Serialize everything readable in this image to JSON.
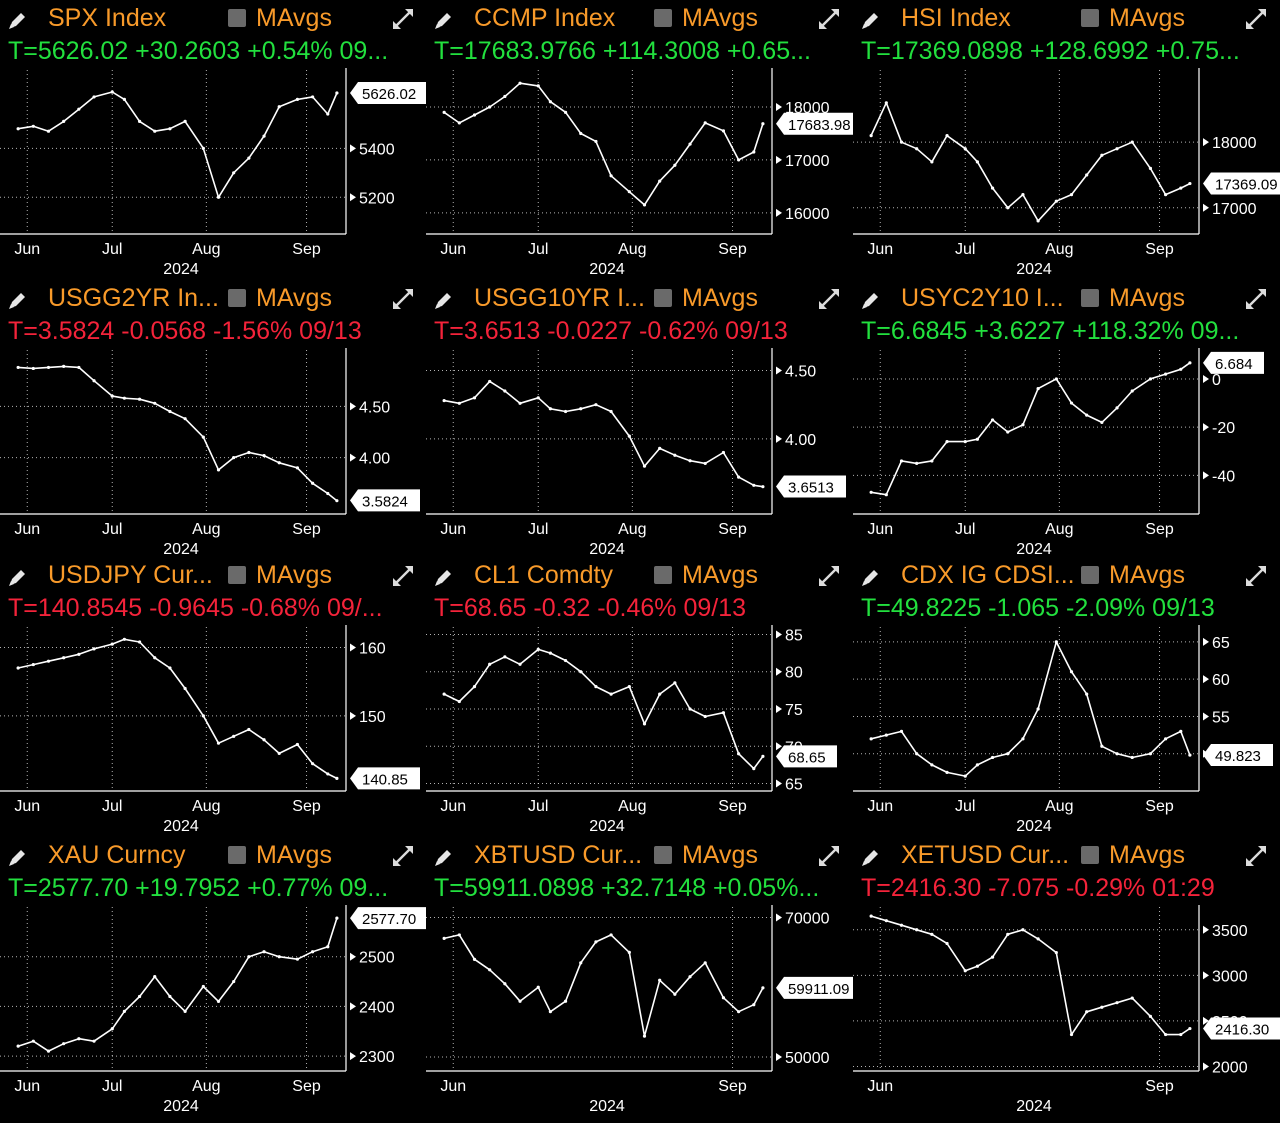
{
  "panels": [
    {
      "title": "SPX Index",
      "ma_label": "MAvgs",
      "status": "T=5626.02 +30.2603 +0.54% 09...",
      "status_color": "#22e03e"
    },
    {
      "title": "CCMP Index",
      "ma_label": "MAvgs",
      "status": "T=17683.9766 +114.3008 +0.65...",
      "status_color": "#22e03e"
    },
    {
      "title": "HSI Index",
      "ma_label": "MAvgs",
      "status": "T=17369.0898 +128.6992 +0.75...",
      "status_color": "#22e03e"
    },
    {
      "title": "USGG2YR In...",
      "ma_label": "MAvgs",
      "status": "T=3.5824 -0.0568 -1.56% 09/13",
      "status_color": "#f4233a"
    },
    {
      "title": "USGG10YR I...",
      "ma_label": "MAvgs",
      "status": "T=3.6513 -0.0227 -0.62% 09/13",
      "status_color": "#f4233a"
    },
    {
      "title": "USYC2Y10 I...",
      "ma_label": "MAvgs",
      "status": "T=6.6845 +3.6227 +118.32% 09...",
      "status_color": "#22e03e"
    },
    {
      "title": "USDJPY Cur...",
      "ma_label": "MAvgs",
      "status": "T=140.8545 -0.9645 -0.68% 09/...",
      "status_color": "#f4233a"
    },
    {
      "title": "CL1 Comdty",
      "ma_label": "MAvgs",
      "status": "T=68.65 -0.32 -0.46% 09/13",
      "status_color": "#f4233a"
    },
    {
      "title": "CDX IG CDSI...",
      "ma_label": "MAvgs",
      "status": "T=49.8225 -1.065 -2.09% 09/13",
      "status_color": "#22e03e"
    },
    {
      "title": "XAU Curncy",
      "ma_label": "MAvgs",
      "status": "T=2577.70 +19.7952 +0.77% 09...",
      "status_color": "#22e03e"
    },
    {
      "title": "XBTUSD Cur...",
      "ma_label": "MAvgs",
      "status": "T=59911.0898 +32.7148 +0.05%...",
      "status_color": "#22e03e"
    },
    {
      "title": "XETUSD Cur...",
      "ma_label": "MAvgs",
      "status": "T=2416.30 -7.075 -0.29% 01:29",
      "status_color": "#f4233a"
    }
  ],
  "chart_data": [
    {
      "type": "line",
      "title": "SPX Index",
      "ylim": [
        5050,
        5720
      ],
      "yticks": [
        5200,
        5400
      ],
      "last_label": "5626.02",
      "last": 5626.02,
      "x_ticks": [
        "Jun",
        "Jul",
        "Aug",
        "Sep"
      ],
      "year_label": "2024",
      "x": [
        "2024-05-31",
        "2024-06-05",
        "2024-06-10",
        "2024-06-15",
        "2024-06-20",
        "2024-06-25",
        "2024-07-01",
        "2024-07-05",
        "2024-07-10",
        "2024-07-15",
        "2024-07-20",
        "2024-07-25",
        "2024-07-31",
        "2024-08-05",
        "2024-08-10",
        "2024-08-15",
        "2024-08-20",
        "2024-08-25",
        "2024-08-31",
        "2024-09-05",
        "2024-09-10",
        "2024-09-13"
      ],
      "values": [
        5480,
        5490,
        5470,
        5510,
        5560,
        5610,
        5630,
        5600,
        5510,
        5470,
        5480,
        5510,
        5400,
        5200,
        5300,
        5360,
        5450,
        5570,
        5600,
        5610,
        5540,
        5626
      ]
    },
    {
      "type": "line",
      "title": "CCMP Index",
      "ylim": [
        15600,
        18700
      ],
      "yticks": [
        16000,
        17000,
        18000
      ],
      "last_label": "17683.98",
      "last": 17683.98,
      "x_ticks": [
        "Jun",
        "Jul",
        "Aug",
        "Sep"
      ],
      "year_label": "2024",
      "x": [
        "2024-05-31",
        "2024-06-05",
        "2024-06-10",
        "2024-06-15",
        "2024-06-20",
        "2024-06-25",
        "2024-07-01",
        "2024-07-05",
        "2024-07-10",
        "2024-07-15",
        "2024-07-20",
        "2024-07-25",
        "2024-07-31",
        "2024-08-05",
        "2024-08-10",
        "2024-08-15",
        "2024-08-20",
        "2024-08-25",
        "2024-08-31",
        "2024-09-05",
        "2024-09-10",
        "2024-09-13"
      ],
      "values": [
        17900,
        17700,
        17850,
        18000,
        18200,
        18450,
        18400,
        18100,
        17900,
        17500,
        17350,
        16700,
        16400,
        16150,
        16600,
        16900,
        17300,
        17700,
        17550,
        17000,
        17150,
        17684
      ]
    },
    {
      "type": "line",
      "title": "HSI Index",
      "ylim": [
        16600,
        19100
      ],
      "yticks": [
        17000,
        18000
      ],
      "last_label": "17369.09",
      "last": 17369.09,
      "x_ticks": [
        "Jun",
        "Jul",
        "Aug",
        "Sep"
      ],
      "year_label": "2024",
      "x": [
        "2024-05-31",
        "2024-06-05",
        "2024-06-10",
        "2024-06-15",
        "2024-06-20",
        "2024-06-25",
        "2024-07-01",
        "2024-07-05",
        "2024-07-10",
        "2024-07-15",
        "2024-07-20",
        "2024-07-25",
        "2024-07-31",
        "2024-08-05",
        "2024-08-10",
        "2024-08-15",
        "2024-08-20",
        "2024-08-25",
        "2024-08-31",
        "2024-09-05",
        "2024-09-10",
        "2024-09-13"
      ],
      "values": [
        18100,
        18600,
        18000,
        17900,
        17700,
        18100,
        17900,
        17700,
        17300,
        17000,
        17200,
        16800,
        17100,
        17200,
        17500,
        17800,
        17900,
        18000,
        17600,
        17200,
        17300,
        17369
      ]
    },
    {
      "type": "line",
      "title": "USGG2YR In...",
      "ylim": [
        3.45,
        5.05
      ],
      "yticks": [
        4.0,
        4.5
      ],
      "tick_labels": [
        "4.00",
        "4.50"
      ],
      "last_label": "3.5824",
      "last": 3.5824,
      "x_ticks": [
        "Jun",
        "Jul",
        "Aug",
        "Sep"
      ],
      "year_label": "2024",
      "x": [
        "2024-05-31",
        "2024-06-05",
        "2024-06-10",
        "2024-06-15",
        "2024-06-20",
        "2024-06-25",
        "2024-07-01",
        "2024-07-05",
        "2024-07-10",
        "2024-07-15",
        "2024-07-20",
        "2024-07-25",
        "2024-07-31",
        "2024-08-05",
        "2024-08-10",
        "2024-08-15",
        "2024-08-20",
        "2024-08-25",
        "2024-08-31",
        "2024-09-05",
        "2024-09-10",
        "2024-09-13"
      ],
      "values": [
        4.88,
        4.87,
        4.88,
        4.89,
        4.88,
        4.75,
        4.6,
        4.58,
        4.57,
        4.53,
        4.45,
        4.38,
        4.2,
        3.88,
        4.0,
        4.05,
        4.02,
        3.95,
        3.9,
        3.75,
        3.65,
        3.58
      ]
    },
    {
      "type": "line",
      "title": "USGG10YR I...",
      "ylim": [
        3.45,
        4.65
      ],
      "yticks": [
        4.0,
        4.5
      ],
      "tick_labels": [
        "4.00",
        "4.50"
      ],
      "last_label": "3.6513",
      "last": 3.6513,
      "x_ticks": [
        "Jun",
        "Jul",
        "Aug",
        "Sep"
      ],
      "year_label": "2024",
      "x": [
        "2024-05-31",
        "2024-06-05",
        "2024-06-10",
        "2024-06-15",
        "2024-06-20",
        "2024-06-25",
        "2024-07-01",
        "2024-07-05",
        "2024-07-10",
        "2024-07-15",
        "2024-07-20",
        "2024-07-25",
        "2024-07-31",
        "2024-08-05",
        "2024-08-10",
        "2024-08-15",
        "2024-08-20",
        "2024-08-25",
        "2024-08-31",
        "2024-09-05",
        "2024-09-10",
        "2024-09-13"
      ],
      "values": [
        4.28,
        4.26,
        4.3,
        4.42,
        4.35,
        4.26,
        4.3,
        4.22,
        4.2,
        4.22,
        4.25,
        4.2,
        4.02,
        3.8,
        3.93,
        3.88,
        3.84,
        3.82,
        3.9,
        3.72,
        3.66,
        3.65
      ]
    },
    {
      "type": "line",
      "title": "USYC2Y10 I...",
      "ylim": [
        -56,
        12
      ],
      "yticks": [
        -40,
        -20,
        0
      ],
      "tick_labels": [
        "-40",
        "-20",
        "0"
      ],
      "last_label": "6.684",
      "last": 6.6845,
      "x_ticks": [
        "Jun",
        "Jul",
        "Aug",
        "Sep"
      ],
      "year_label": "2024",
      "x": [
        "2024-05-31",
        "2024-06-05",
        "2024-06-10",
        "2024-06-15",
        "2024-06-20",
        "2024-06-25",
        "2024-07-01",
        "2024-07-05",
        "2024-07-10",
        "2024-07-15",
        "2024-07-20",
        "2024-07-25",
        "2024-07-31",
        "2024-08-05",
        "2024-08-10",
        "2024-08-15",
        "2024-08-20",
        "2024-08-25",
        "2024-08-31",
        "2024-09-05",
        "2024-09-10",
        "2024-09-13"
      ],
      "values": [
        -47,
        -48,
        -34,
        -35,
        -34,
        -26,
        -26,
        -25,
        -17,
        -22,
        -19,
        -4,
        0,
        -10,
        -15,
        -18,
        -12,
        -5,
        0,
        2,
        4,
        6.68
      ]
    },
    {
      "type": "line",
      "title": "USDJPY Cur...",
      "ylim": [
        139,
        163
      ],
      "yticks": [
        150,
        160
      ],
      "last_label": "140.85",
      "last": 140.8545,
      "x_ticks": [
        "Jun",
        "Jul",
        "Aug",
        "Sep"
      ],
      "year_label": "2024",
      "x": [
        "2024-05-31",
        "2024-06-05",
        "2024-06-10",
        "2024-06-15",
        "2024-06-20",
        "2024-06-25",
        "2024-07-01",
        "2024-07-05",
        "2024-07-10",
        "2024-07-15",
        "2024-07-20",
        "2024-07-25",
        "2024-07-31",
        "2024-08-05",
        "2024-08-10",
        "2024-08-15",
        "2024-08-20",
        "2024-08-25",
        "2024-08-31",
        "2024-09-05",
        "2024-09-10",
        "2024-09-13"
      ],
      "values": [
        157,
        157.5,
        158,
        158.5,
        159,
        159.8,
        160.5,
        161.2,
        160.8,
        158.5,
        157,
        154,
        150,
        146,
        147,
        148,
        146.5,
        144.5,
        145.8,
        143,
        141.5,
        140.85
      ]
    },
    {
      "type": "line",
      "title": "CL1 Comdty",
      "ylim": [
        64,
        86
      ],
      "yticks": [
        65,
        70,
        75,
        80,
        85
      ],
      "last_label": "68.65",
      "last": 68.65,
      "x_ticks": [
        "Jun",
        "Jul",
        "Aug",
        "Sep"
      ],
      "year_label": "2024",
      "x": [
        "2024-05-31",
        "2024-06-05",
        "2024-06-10",
        "2024-06-15",
        "2024-06-20",
        "2024-06-25",
        "2024-07-01",
        "2024-07-05",
        "2024-07-10",
        "2024-07-15",
        "2024-07-20",
        "2024-07-25",
        "2024-07-31",
        "2024-08-05",
        "2024-08-10",
        "2024-08-15",
        "2024-08-20",
        "2024-08-25",
        "2024-08-31",
        "2024-09-05",
        "2024-09-10",
        "2024-09-13"
      ],
      "values": [
        77,
        76,
        78,
        81,
        82,
        81,
        83,
        82.5,
        81.5,
        80,
        78,
        77,
        78,
        73,
        77,
        78.5,
        75,
        74,
        74.5,
        69,
        67,
        68.65
      ]
    },
    {
      "type": "line",
      "title": "CDX IG CDSI...",
      "ylim": [
        45,
        67
      ],
      "yticks": [
        50,
        55,
        60,
        65
      ],
      "last_label": "49.823",
      "last": 49.8225,
      "x_ticks": [
        "Jun",
        "Jul",
        "Aug",
        "Sep"
      ],
      "year_label": "2024",
      "x": [
        "2024-05-31",
        "2024-06-05",
        "2024-06-10",
        "2024-06-15",
        "2024-06-20",
        "2024-06-25",
        "2024-07-01",
        "2024-07-05",
        "2024-07-10",
        "2024-07-15",
        "2024-07-20",
        "2024-07-25",
        "2024-07-31",
        "2024-08-05",
        "2024-08-10",
        "2024-08-15",
        "2024-08-20",
        "2024-08-25",
        "2024-08-31",
        "2024-09-05",
        "2024-09-10",
        "2024-09-13"
      ],
      "values": [
        52,
        52.5,
        53,
        50,
        48.5,
        47.5,
        47,
        48.5,
        49.5,
        50,
        52,
        56,
        65,
        61,
        58,
        51,
        50,
        49.5,
        50,
        52,
        53,
        49.82
      ]
    },
    {
      "type": "line",
      "title": "XAU Curncy",
      "ylim": [
        2270,
        2600
      ],
      "yticks": [
        2300,
        2400,
        2500
      ],
      "last_label": "2577.70",
      "last": 2577.7,
      "x_ticks": [
        "Jun",
        "Jul",
        "Aug",
        "Sep"
      ],
      "year_label": "2024",
      "x": [
        "2024-05-31",
        "2024-06-05",
        "2024-06-10",
        "2024-06-15",
        "2024-06-20",
        "2024-06-25",
        "2024-07-01",
        "2024-07-05",
        "2024-07-10",
        "2024-07-15",
        "2024-07-20",
        "2024-07-25",
        "2024-07-31",
        "2024-08-05",
        "2024-08-10",
        "2024-08-15",
        "2024-08-20",
        "2024-08-25",
        "2024-08-31",
        "2024-09-05",
        "2024-09-10",
        "2024-09-13"
      ],
      "values": [
        2320,
        2330,
        2310,
        2325,
        2335,
        2330,
        2355,
        2390,
        2420,
        2460,
        2420,
        2390,
        2440,
        2410,
        2450,
        2500,
        2510,
        2500,
        2495,
        2510,
        2520,
        2577.7
      ]
    },
    {
      "type": "line",
      "title": "XBTUSD Cur...",
      "ylim": [
        48000,
        71500
      ],
      "yticks": [
        50000,
        70000
      ],
      "last_label": "59911.09",
      "last": 59911.09,
      "x_ticks": [
        "Jun",
        "Sep"
      ],
      "year_label": "2024",
      "x": [
        "2024-05-31",
        "2024-06-05",
        "2024-06-10",
        "2024-06-15",
        "2024-06-20",
        "2024-06-25",
        "2024-07-01",
        "2024-07-05",
        "2024-07-10",
        "2024-07-15",
        "2024-07-20",
        "2024-07-25",
        "2024-07-31",
        "2024-08-05",
        "2024-08-10",
        "2024-08-15",
        "2024-08-20",
        "2024-08-25",
        "2024-08-31",
        "2024-09-05",
        "2024-09-10",
        "2024-09-13"
      ],
      "values": [
        67000,
        67500,
        64000,
        62500,
        60500,
        58000,
        60000,
        56500,
        58000,
        63500,
        66500,
        67500,
        65000,
        53000,
        61000,
        59000,
        61500,
        63500,
        58500,
        56500,
        57500,
        59911
      ]
    },
    {
      "type": "line",
      "title": "XETUSD Cur...",
      "ylim": [
        1950,
        3750
      ],
      "yticks": [
        2000,
        2500,
        3000,
        3500
      ],
      "last_label": "2416.30",
      "last": 2416.3,
      "x_ticks": [
        "Jun",
        "Sep"
      ],
      "year_label": "2024",
      "x": [
        "2024-05-31",
        "2024-06-05",
        "2024-06-10",
        "2024-06-15",
        "2024-06-20",
        "2024-06-25",
        "2024-07-01",
        "2024-07-05",
        "2024-07-10",
        "2024-07-15",
        "2024-07-20",
        "2024-07-25",
        "2024-07-31",
        "2024-08-05",
        "2024-08-10",
        "2024-08-15",
        "2024-08-20",
        "2024-08-25",
        "2024-08-31",
        "2024-09-05",
        "2024-09-10",
        "2024-09-13"
      ],
      "values": [
        3650,
        3600,
        3550,
        3500,
        3450,
        3350,
        3050,
        3100,
        3200,
        3450,
        3500,
        3400,
        3250,
        2350,
        2600,
        2650,
        2700,
        2750,
        2550,
        2350,
        2350,
        2416
      ]
    }
  ]
}
